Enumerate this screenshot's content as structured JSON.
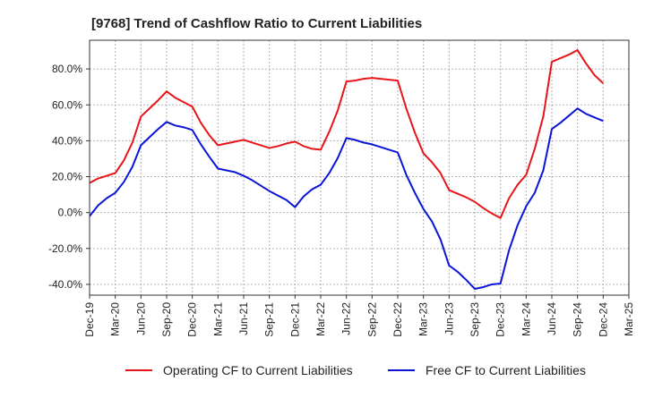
{
  "chart_data": {
    "type": "line",
    "title": "[9768]  Trend of Cashflow Ratio to Current Liabilities",
    "xlabel": "",
    "ylabel": "",
    "ylim": [
      -46,
      96
    ],
    "yticks": [
      -40,
      -20,
      0,
      20,
      40,
      60,
      80
    ],
    "ytick_labels": [
      "-40.0%",
      "-20.0%",
      "0.0%",
      "20.0%",
      "40.0%",
      "60.0%",
      "80.0%"
    ],
    "xlim": [
      0,
      63
    ],
    "xtick_positions": [
      0,
      3,
      6,
      9,
      12,
      15,
      18,
      21,
      24,
      27,
      30,
      33,
      36,
      39,
      42,
      45,
      48,
      51,
      54,
      57,
      60,
      63
    ],
    "xtick_labels": [
      "Dec-19",
      "Mar-20",
      "Jun-20",
      "Sep-20",
      "Dec-20",
      "Mar-21",
      "Jun-21",
      "Sep-21",
      "Dec-21",
      "Mar-22",
      "Jun-22",
      "Sep-22",
      "Dec-22",
      "Mar-23",
      "Jun-23",
      "Sep-23",
      "Dec-23",
      "Mar-24",
      "Jun-24",
      "Sep-24",
      "Dec-24",
      "Mar-25"
    ],
    "grid": true,
    "legend_position": "bottom",
    "x": [
      0,
      1,
      2,
      3,
      4,
      5,
      6,
      7,
      8,
      9,
      10,
      11,
      12,
      13,
      14,
      15,
      16,
      17,
      18,
      19,
      20,
      21,
      22,
      23,
      24,
      25,
      26,
      27,
      28,
      29,
      30,
      31,
      32,
      33,
      34,
      35,
      36,
      37,
      38,
      39,
      40,
      41,
      42,
      43,
      44,
      45,
      46,
      47,
      48,
      49,
      50,
      51,
      52,
      53,
      54,
      55,
      56,
      57,
      58,
      59,
      60
    ],
    "series": [
      {
        "name": "Operating CF to Current Liabilities",
        "color": "#e8141a",
        "values": [
          16.5,
          19,
          20.5,
          22,
          29,
          39,
          53.5,
          58,
          62.5,
          67.5,
          64,
          61.5,
          59,
          50,
          43,
          37.5,
          38.5,
          39.5,
          40.5,
          39,
          37.5,
          36,
          37,
          38.5,
          39.5,
          37,
          35.5,
          35,
          45,
          57,
          73,
          73.5,
          74.5,
          75,
          74.5,
          74,
          73.5,
          58,
          44.5,
          33,
          28,
          22,
          12.5,
          10.5,
          8.5,
          6,
          2.5,
          -0.5,
          -3,
          8,
          15.5,
          21,
          35.5,
          53.5,
          84,
          86,
          88,
          90.5,
          83,
          76.5,
          72
        ]
      },
      {
        "name": "Free CF to Current Liabilities",
        "color": "#0a14d8",
        "values": [
          -2,
          4,
          8,
          11,
          17,
          25.5,
          37.5,
          42,
          46.5,
          50.5,
          48.5,
          47.5,
          46,
          38,
          31,
          24.5,
          23.5,
          22.5,
          20.5,
          18,
          15,
          12,
          9.5,
          7,
          3,
          9,
          13,
          15.5,
          22,
          30.5,
          41.5,
          40.5,
          39,
          38,
          36.5,
          35,
          33.5,
          21,
          11,
          2,
          -5,
          -15,
          -29.5,
          -33,
          -37.5,
          -42.5,
          -41.5,
          -40,
          -39.5,
          -21,
          -7,
          3.5,
          11,
          23.5,
          46.5,
          50,
          54,
          58,
          55,
          53,
          51
        ]
      }
    ]
  }
}
